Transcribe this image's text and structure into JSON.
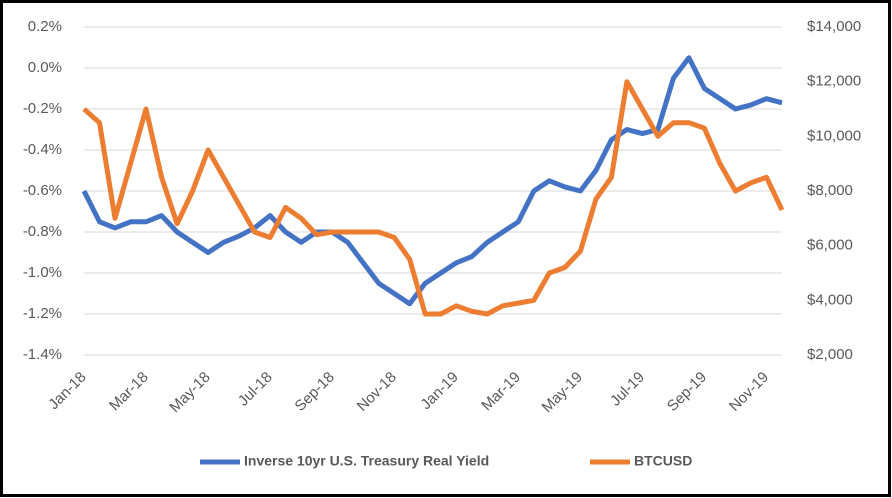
{
  "chart_data": {
    "type": "line",
    "categories": [
      "Jan-18",
      null,
      null,
      null,
      "Mar-18",
      null,
      null,
      null,
      "May-18",
      null,
      null,
      null,
      "Jul-18",
      null,
      null,
      null,
      "Sep-18",
      null,
      null,
      null,
      "Nov-18",
      null,
      null,
      null,
      "Jan-19",
      null,
      null,
      null,
      "Mar-19",
      null,
      null,
      null,
      "May-19",
      null,
      null,
      null,
      "Jul-19",
      null,
      null,
      null,
      "Sep-19",
      null,
      null,
      null,
      "Nov-19",
      null
    ],
    "series": [
      {
        "name": "Inverse 10yr U.S. Treasury Real Yield",
        "color": "#4472c4",
        "axis": "y",
        "values": [
          -0.6,
          -0.75,
          -0.78,
          -0.75,
          -0.75,
          -0.72,
          -0.8,
          -0.85,
          -0.9,
          -0.85,
          -0.82,
          -0.78,
          -0.72,
          -0.8,
          -0.85,
          -0.8,
          -0.8,
          -0.85,
          -0.95,
          -1.05,
          -1.1,
          -1.15,
          -1.05,
          -1.0,
          -0.95,
          -0.92,
          -0.85,
          -0.8,
          -0.75,
          -0.6,
          -0.55,
          -0.58,
          -0.6,
          -0.5,
          -0.35,
          -0.3,
          -0.32,
          -0.3,
          -0.05,
          0.05,
          -0.1,
          -0.15,
          -0.2,
          -0.18,
          -0.15,
          -0.17
        ]
      },
      {
        "name": "BTCUSD",
        "color": "#ed7d31",
        "axis": "y2",
        "values": [
          11000,
          10500,
          7000,
          9000,
          11000,
          8500,
          6800,
          8000,
          9500,
          8500,
          7500,
          6500,
          6300,
          7400,
          7000,
          6400,
          6500,
          6500,
          6500,
          6500,
          6300,
          5500,
          3500,
          3500,
          3800,
          3600,
          3500,
          3800,
          3900,
          4000,
          5000,
          5200,
          5800,
          7700,
          8500,
          12000,
          11000,
          10000,
          10500,
          10500,
          10300,
          9000,
          8000,
          8300,
          8500,
          7300
        ]
      }
    ],
    "ylim": [
      -1.4,
      0.2
    ],
    "yticks": [
      {
        "value": -1.4,
        "label": "-1.4%"
      },
      {
        "value": -1.2,
        "label": "-1.2%"
      },
      {
        "value": -1.0,
        "label": "-1.0%"
      },
      {
        "value": -0.8,
        "label": "-0.8%"
      },
      {
        "value": -0.6,
        "label": "-0.6%"
      },
      {
        "value": -0.4,
        "label": "-0.4%"
      },
      {
        "value": -0.2,
        "label": "-0.2%"
      },
      {
        "value": 0.0,
        "label": "0.0%"
      },
      {
        "value": 0.2,
        "label": "0.2%"
      }
    ],
    "y2lim": [
      2000,
      14000
    ],
    "y2ticks": [
      {
        "value": 2000,
        "label": "$2,000"
      },
      {
        "value": 4000,
        "label": "$4,000"
      },
      {
        "value": 6000,
        "label": "$6,000"
      },
      {
        "value": 8000,
        "label": "$8,000"
      },
      {
        "value": 10000,
        "label": "$10,000"
      },
      {
        "value": 12000,
        "label": "$12,000"
      },
      {
        "value": 14000,
        "label": "$14,000"
      }
    ],
    "grid": true,
    "legend": "bottom"
  }
}
